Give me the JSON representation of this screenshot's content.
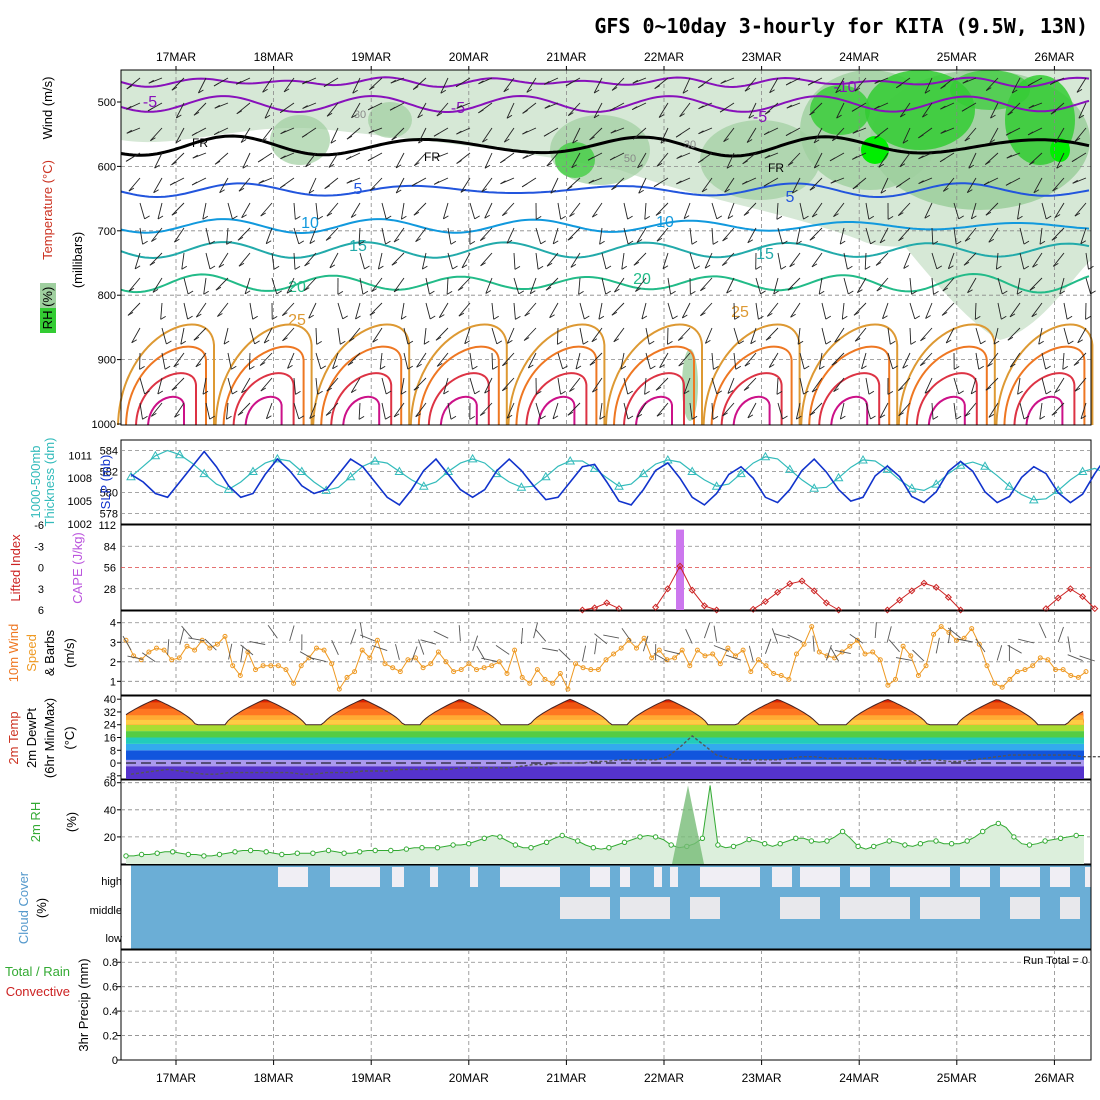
{
  "title": "GFS 0~10day 3-hourly for KITA (9.5W, 13N)",
  "dates": [
    "17MAR",
    "18MAR",
    "19MAR",
    "20MAR",
    "21MAR",
    "22MAR",
    "23MAR",
    "24MAR",
    "25MAR",
    "26MAR"
  ],
  "colors": {
    "grid": "#888888",
    "rh_light": "#d6e8d6",
    "rh_mid": "#9fcf9f",
    "rh_green": "#33cc33",
    "thickness": "#33bbbb",
    "slp": "#1133cc",
    "cape": "#cc77ee",
    "lifted": "#cc2222",
    "wind10": "#ee9922",
    "rh2m": "#33aa33",
    "cloud": "#6baed6",
    "cloud_bg": "#f0eef4"
  },
  "panels": {
    "upper": {
      "label_rh": "RH (%)",
      "label_temp": "Temperature (°C)",
      "label_wind": "Wind (m/s)",
      "label_units": "(millibars)",
      "yticks": [
        "500",
        "600",
        "700",
        "800",
        "900",
        "1000"
      ],
      "contour_labels": [
        "-5",
        "-5",
        "-5",
        "-10",
        "FR",
        "FR",
        "FR",
        "5",
        "5",
        "10",
        "10",
        "15",
        "15",
        "20",
        "20",
        "25",
        "25",
        "30",
        "50",
        "30"
      ]
    },
    "thick_slp": {
      "label_a": "1000-500mb",
      "label_b": "Thickness (dm)",
      "label_c": "SLP (mb)",
      "yticks_left": [
        "584",
        "582",
        "580",
        "578"
      ],
      "yticks_right": [
        "1011",
        "1008",
        "1005",
        "1002"
      ]
    },
    "cape_li": {
      "label_a": "Lifted Index",
      "label_b": "CAPE (J/kg)",
      "yticks_left": [
        "-6",
        "-3",
        "0",
        "3",
        "6"
      ],
      "yticks_right": [
        "112",
        "84",
        "56",
        "28"
      ]
    },
    "wind10": {
      "label_a": "10m Wind",
      "label_b": "Speed",
      "label_c": "& Barbs",
      "label_d": "(m/s)",
      "yticks": [
        "4",
        "3",
        "2",
        "1"
      ]
    },
    "temp2m": {
      "label_a": "2m Temp",
      "label_b": "2m DewPt",
      "label_c": "(6hr Min/Max)",
      "label_d": "(°C)",
      "yticks": [
        "40",
        "32",
        "24",
        "16",
        "8",
        "0",
        "-8"
      ]
    },
    "rh2m": {
      "label_a": "2m RH",
      "label_b": "(%)",
      "yticks": [
        "60",
        "40",
        "20"
      ]
    },
    "cloud": {
      "label_a": "Cloud Cover",
      "label_b": "(%)",
      "levels": [
        "high",
        "middle",
        "low"
      ]
    },
    "precip": {
      "label_a": "Total / Rain",
      "label_b": "Convective",
      "label_c": "3hr Precip (mm)",
      "yticks": [
        "0.8",
        "0.6",
        "0.4",
        "0.2",
        "0"
      ],
      "run_total": "Run Total = 0"
    }
  },
  "chart_data": [
    {
      "type": "line",
      "name": "1000-500mb Thickness",
      "units": "dm",
      "x_start": "16MAR 12Z",
      "x_step_hours": 3,
      "ylim": [
        577,
        585
      ],
      "values": [
        581.5,
        582.5,
        583.5,
        584,
        583.6,
        582.8,
        581.8,
        580.8,
        580.3,
        581,
        582,
        582.8,
        583.2,
        583,
        582,
        581,
        580.2,
        580.5,
        581.5,
        582.5,
        583,
        582.8,
        582,
        581.2,
        580.6,
        581,
        582,
        582.8,
        583.2,
        582.8,
        581.8,
        581,
        580.5,
        580.6,
        581.5,
        582.5,
        583,
        583,
        582.3,
        581.4,
        580.6,
        580.8,
        581.8,
        582.7,
        583.1,
        582.9,
        582,
        581.2,
        580.6,
        580.8,
        581.8,
        582.8,
        583.4,
        583.2,
        582.2,
        581.2,
        580.4,
        580.5,
        581.4,
        582.4,
        583.1,
        583,
        582.2,
        581.2,
        580.4,
        580.2,
        580.8,
        581.8,
        582.6,
        582.9,
        582.5,
        581.6,
        580.6,
        579.8,
        579.3,
        579.4,
        580.2,
        581.2,
        582,
        582.3,
        581.8,
        580.8,
        579.8,
        579.2,
        578.6,
        578.8,
        579.6,
        580.6,
        581.2,
        581.4,
        580.8,
        580
      ]
    },
    {
      "type": "line",
      "name": "SLP",
      "units": "mb",
      "x_start": "16MAR 12Z",
      "x_step_hours": 3,
      "ylim": [
        1002,
        1013
      ],
      "values": [
        1008.5,
        1007.5,
        1006,
        1005.5,
        1007.5,
        1009.5,
        1011.5,
        1009.5,
        1007,
        1005.5,
        1006,
        1008.5,
        1010.5,
        1009,
        1007,
        1006,
        1006.5,
        1008.5,
        1010.5,
        1009.5,
        1007.5,
        1005.5,
        1004.5,
        1006.5,
        1009,
        1010.5,
        1008.5,
        1006.5,
        1005.5,
        1006.5,
        1009,
        1010.5,
        1009,
        1007,
        1005.2,
        1005.5,
        1007.5,
        1009.5,
        1009.8,
        1007.5,
        1005,
        1004.5,
        1006.5,
        1009,
        1010,
        1008,
        1005.5,
        1004.5,
        1006,
        1008.5,
        1009.5,
        1008,
        1005.5,
        1004.8,
        1006.5,
        1009,
        1010.5,
        1008.8,
        1006.5,
        1005,
        1005.5,
        1008.3,
        1009.6,
        1008.2,
        1005.6,
        1004.8,
        1006.2,
        1008.9,
        1010.2,
        1008.9,
        1006.2,
        1004.8,
        1005.6,
        1008.1,
        1009.5,
        1008.6,
        1006.1,
        1004.8,
        1005.9,
        1008.6,
        1010.9,
        1010,
        1007.1,
        1005.1,
        1005.1,
        1006.9,
        1008.1,
        1007,
        1005.6,
        1006.4,
        1006.8
      ]
    },
    {
      "type": "bar",
      "name": "CAPE",
      "units": "J/kg",
      "ylim": [
        0,
        112
      ],
      "x_index": [
        45
      ],
      "values": [
        106
      ]
    },
    {
      "type": "line",
      "name": "Lifted Index",
      "units": "°C",
      "ylim": [
        6,
        -6
      ],
      "segments": [
        {
          "x_index": [
            37,
            38,
            39,
            40
          ],
          "values": [
            6,
            5.7,
            5,
            5.8
          ]
        },
        {
          "x_index": [
            43,
            44,
            45,
            46,
            47,
            48
          ],
          "values": [
            5.6,
            3,
            -0.2,
            3.2,
            5.4,
            6
          ]
        },
        {
          "x_index": [
            51,
            52,
            53,
            54,
            55,
            56,
            57,
            58
          ],
          "values": [
            5.9,
            4.8,
            3.5,
            2.3,
            1.9,
            3.3,
            5,
            6
          ]
        },
        {
          "x_index": [
            62,
            63,
            64,
            65,
            66,
            67,
            68
          ],
          "values": [
            6,
            4.6,
            3.3,
            2.2,
            2.8,
            4.2,
            6
          ]
        },
        {
          "x_index": [
            75,
            76,
            77,
            78,
            79
          ],
          "values": [
            5.8,
            4.3,
            3,
            4.1,
            5.8
          ]
        },
        {
          "x_index": [
            80,
            81,
            82,
            83,
            84,
            85,
            86,
            87
          ],
          "values": [
            6,
            4.5,
            3.2,
            2.1,
            1.6,
            2.3,
            3.6,
            5.4
          ]
        }
      ]
    },
    {
      "type": "line",
      "name": "10m Wind Speed",
      "units": "m/s",
      "ylim": [
        0.3,
        4.6
      ],
      "values": [
        3.1,
        2.3,
        2.1,
        2.5,
        2.7,
        2.6,
        2.1,
        2.2,
        2.8,
        2.6,
        3.1,
        2.7,
        2.9,
        3.3,
        1.8,
        1.3,
        2.5,
        1.6,
        1.8,
        1.8,
        1.8,
        1.6,
        0.9,
        1.8,
        2.2,
        2.7,
        2.6,
        1.9,
        0.6,
        1.2,
        1.5,
        2.6,
        2.2,
        3.1,
        1.9,
        1.7,
        1.5,
        2.1,
        2.2,
        1.7,
        1.9,
        2.5,
        2,
        1.5,
        1.6,
        1.9,
        1.6,
        1.7,
        1.8,
        2,
        1.4,
        2.6,
        1.2,
        0.9,
        1.6,
        1.1,
        0.9,
        1.4,
        0.6,
        1.9,
        1.7,
        1.6,
        1.6,
        2.1,
        2.4,
        2.7,
        3.1,
        2.7,
        3.2,
        2.2,
        2.6,
        2.1,
        2.2,
        2.6,
        1.8,
        2.6,
        2.3,
        2.4,
        1.9,
        2.7,
        2.3,
        2.6,
        1.5,
        2.1,
        1.8,
        1.4,
        1.3,
        1.1,
        2.4,
        2.9,
        3.8,
        2.5,
        2.3,
        2.2,
        2.5,
        2.8,
        3.1,
        2.4,
        2.5,
        2.1,
        0.8,
        1.1,
        2.8,
        2.3,
        1.3,
        1.8,
        3.4,
        3.8,
        3.5,
        3.1,
        3.2,
        3.7,
        2.9,
        1.8,
        0.9,
        0.7,
        1.1,
        1.5,
        1.6,
        1.8,
        2.2,
        2.1,
        1.6,
        1.6,
        1.3,
        1.2,
        1.5
      ]
    },
    {
      "type": "area",
      "name": "2m Temp",
      "units": "°C",
      "ylim": [
        -10,
        42
      ],
      "min_daily": 24,
      "max_daily": 40,
      "peaks_index": [
        2,
        11,
        19,
        27,
        36,
        44,
        53,
        62,
        71,
        80,
        88
      ]
    },
    {
      "type": "line",
      "name": "2m DewPt",
      "units": "°C",
      "ylim": [
        -10,
        42
      ],
      "values": [
        -7,
        -6,
        -5,
        -4,
        -5,
        -6,
        -7,
        -7,
        -6,
        -6,
        -6,
        -6,
        -6,
        -6,
        -7,
        -7,
        -6,
        -6,
        -6,
        -5,
        -5,
        -5,
        -4,
        -4,
        -4,
        -4,
        -4,
        -3,
        -3,
        -3,
        -3,
        -3,
        -2,
        -1,
        -1,
        0,
        0,
        0,
        1,
        1,
        2,
        2,
        2,
        2,
        4,
        10,
        17,
        11,
        5,
        3,
        2,
        2,
        2,
        2,
        3,
        4,
        4,
        3,
        3,
        3,
        3,
        3,
        2,
        2,
        1,
        2,
        2,
        1,
        1,
        2,
        3,
        4,
        5,
        5,
        5,
        5,
        5,
        5,
        4,
        4,
        4,
        3,
        3,
        3,
        3,
        3,
        3,
        2
      ]
    },
    {
      "type": "line",
      "name": "2m RH",
      "units": "%",
      "ylim": [
        0,
        62
      ],
      "values": [
        6,
        6,
        7,
        7,
        8,
        9,
        9,
        8,
        7,
        7,
        6,
        6,
        7,
        8,
        9,
        10,
        10,
        10,
        9,
        8,
        7,
        7,
        8,
        8,
        8,
        9,
        10,
        9,
        8,
        8,
        9,
        10,
        10,
        10,
        10,
        10,
        11,
        12,
        12,
        12,
        12,
        13,
        14,
        14,
        15,
        17,
        19,
        21,
        20,
        17,
        14,
        12,
        12,
        14,
        16,
        19,
        21,
        19,
        17,
        14,
        12,
        11,
        12,
        14,
        16,
        18,
        20,
        21,
        20,
        18,
        14,
        12,
        13,
        15,
        19,
        58,
        14,
        12,
        13,
        15,
        18,
        17,
        15,
        13,
        15,
        17,
        19,
        19,
        17,
        16,
        17,
        20,
        24,
        19,
        13,
        11,
        13,
        15,
        17,
        16,
        14,
        13,
        15,
        17,
        17,
        15,
        15,
        15,
        17,
        20,
        24,
        28,
        30,
        27,
        20,
        15,
        14,
        15,
        17,
        18,
        19,
        20,
        21,
        21
      ]
    }
  ]
}
